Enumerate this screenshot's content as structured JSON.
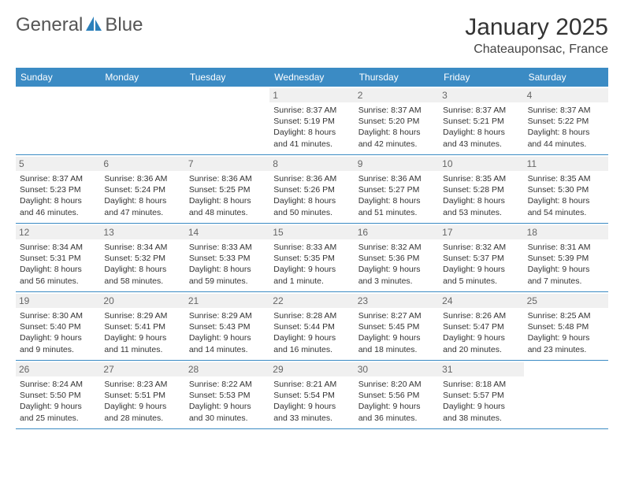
{
  "logo": {
    "text_part1": "General",
    "text_part2": "Blue"
  },
  "title": "January 2025",
  "location": "Chateauponsac, France",
  "colors": {
    "header_bg": "#3b8bc4",
    "header_text": "#ffffff",
    "daynum_bg": "#f0f0f0",
    "daynum_text": "#666666",
    "body_text": "#333333",
    "rule": "#3b8bc4",
    "logo_blue": "#2a7fba"
  },
  "weekdays": [
    "Sunday",
    "Monday",
    "Tuesday",
    "Wednesday",
    "Thursday",
    "Friday",
    "Saturday"
  ],
  "weeks": [
    [
      {
        "day": "",
        "sunrise": "",
        "sunset": "",
        "daylight1": "",
        "daylight2": ""
      },
      {
        "day": "",
        "sunrise": "",
        "sunset": "",
        "daylight1": "",
        "daylight2": ""
      },
      {
        "day": "",
        "sunrise": "",
        "sunset": "",
        "daylight1": "",
        "daylight2": ""
      },
      {
        "day": "1",
        "sunrise": "Sunrise: 8:37 AM",
        "sunset": "Sunset: 5:19 PM",
        "daylight1": "Daylight: 8 hours",
        "daylight2": "and 41 minutes."
      },
      {
        "day": "2",
        "sunrise": "Sunrise: 8:37 AM",
        "sunset": "Sunset: 5:20 PM",
        "daylight1": "Daylight: 8 hours",
        "daylight2": "and 42 minutes."
      },
      {
        "day": "3",
        "sunrise": "Sunrise: 8:37 AM",
        "sunset": "Sunset: 5:21 PM",
        "daylight1": "Daylight: 8 hours",
        "daylight2": "and 43 minutes."
      },
      {
        "day": "4",
        "sunrise": "Sunrise: 8:37 AM",
        "sunset": "Sunset: 5:22 PM",
        "daylight1": "Daylight: 8 hours",
        "daylight2": "and 44 minutes."
      }
    ],
    [
      {
        "day": "5",
        "sunrise": "Sunrise: 8:37 AM",
        "sunset": "Sunset: 5:23 PM",
        "daylight1": "Daylight: 8 hours",
        "daylight2": "and 46 minutes."
      },
      {
        "day": "6",
        "sunrise": "Sunrise: 8:36 AM",
        "sunset": "Sunset: 5:24 PM",
        "daylight1": "Daylight: 8 hours",
        "daylight2": "and 47 minutes."
      },
      {
        "day": "7",
        "sunrise": "Sunrise: 8:36 AM",
        "sunset": "Sunset: 5:25 PM",
        "daylight1": "Daylight: 8 hours",
        "daylight2": "and 48 minutes."
      },
      {
        "day": "8",
        "sunrise": "Sunrise: 8:36 AM",
        "sunset": "Sunset: 5:26 PM",
        "daylight1": "Daylight: 8 hours",
        "daylight2": "and 50 minutes."
      },
      {
        "day": "9",
        "sunrise": "Sunrise: 8:36 AM",
        "sunset": "Sunset: 5:27 PM",
        "daylight1": "Daylight: 8 hours",
        "daylight2": "and 51 minutes."
      },
      {
        "day": "10",
        "sunrise": "Sunrise: 8:35 AM",
        "sunset": "Sunset: 5:28 PM",
        "daylight1": "Daylight: 8 hours",
        "daylight2": "and 53 minutes."
      },
      {
        "day": "11",
        "sunrise": "Sunrise: 8:35 AM",
        "sunset": "Sunset: 5:30 PM",
        "daylight1": "Daylight: 8 hours",
        "daylight2": "and 54 minutes."
      }
    ],
    [
      {
        "day": "12",
        "sunrise": "Sunrise: 8:34 AM",
        "sunset": "Sunset: 5:31 PM",
        "daylight1": "Daylight: 8 hours",
        "daylight2": "and 56 minutes."
      },
      {
        "day": "13",
        "sunrise": "Sunrise: 8:34 AM",
        "sunset": "Sunset: 5:32 PM",
        "daylight1": "Daylight: 8 hours",
        "daylight2": "and 58 minutes."
      },
      {
        "day": "14",
        "sunrise": "Sunrise: 8:33 AM",
        "sunset": "Sunset: 5:33 PM",
        "daylight1": "Daylight: 8 hours",
        "daylight2": "and 59 minutes."
      },
      {
        "day": "15",
        "sunrise": "Sunrise: 8:33 AM",
        "sunset": "Sunset: 5:35 PM",
        "daylight1": "Daylight: 9 hours",
        "daylight2": "and 1 minute."
      },
      {
        "day": "16",
        "sunrise": "Sunrise: 8:32 AM",
        "sunset": "Sunset: 5:36 PM",
        "daylight1": "Daylight: 9 hours",
        "daylight2": "and 3 minutes."
      },
      {
        "day": "17",
        "sunrise": "Sunrise: 8:32 AM",
        "sunset": "Sunset: 5:37 PM",
        "daylight1": "Daylight: 9 hours",
        "daylight2": "and 5 minutes."
      },
      {
        "day": "18",
        "sunrise": "Sunrise: 8:31 AM",
        "sunset": "Sunset: 5:39 PM",
        "daylight1": "Daylight: 9 hours",
        "daylight2": "and 7 minutes."
      }
    ],
    [
      {
        "day": "19",
        "sunrise": "Sunrise: 8:30 AM",
        "sunset": "Sunset: 5:40 PM",
        "daylight1": "Daylight: 9 hours",
        "daylight2": "and 9 minutes."
      },
      {
        "day": "20",
        "sunrise": "Sunrise: 8:29 AM",
        "sunset": "Sunset: 5:41 PM",
        "daylight1": "Daylight: 9 hours",
        "daylight2": "and 11 minutes."
      },
      {
        "day": "21",
        "sunrise": "Sunrise: 8:29 AM",
        "sunset": "Sunset: 5:43 PM",
        "daylight1": "Daylight: 9 hours",
        "daylight2": "and 14 minutes."
      },
      {
        "day": "22",
        "sunrise": "Sunrise: 8:28 AM",
        "sunset": "Sunset: 5:44 PM",
        "daylight1": "Daylight: 9 hours",
        "daylight2": "and 16 minutes."
      },
      {
        "day": "23",
        "sunrise": "Sunrise: 8:27 AM",
        "sunset": "Sunset: 5:45 PM",
        "daylight1": "Daylight: 9 hours",
        "daylight2": "and 18 minutes."
      },
      {
        "day": "24",
        "sunrise": "Sunrise: 8:26 AM",
        "sunset": "Sunset: 5:47 PM",
        "daylight1": "Daylight: 9 hours",
        "daylight2": "and 20 minutes."
      },
      {
        "day": "25",
        "sunrise": "Sunrise: 8:25 AM",
        "sunset": "Sunset: 5:48 PM",
        "daylight1": "Daylight: 9 hours",
        "daylight2": "and 23 minutes."
      }
    ],
    [
      {
        "day": "26",
        "sunrise": "Sunrise: 8:24 AM",
        "sunset": "Sunset: 5:50 PM",
        "daylight1": "Daylight: 9 hours",
        "daylight2": "and 25 minutes."
      },
      {
        "day": "27",
        "sunrise": "Sunrise: 8:23 AM",
        "sunset": "Sunset: 5:51 PM",
        "daylight1": "Daylight: 9 hours",
        "daylight2": "and 28 minutes."
      },
      {
        "day": "28",
        "sunrise": "Sunrise: 8:22 AM",
        "sunset": "Sunset: 5:53 PM",
        "daylight1": "Daylight: 9 hours",
        "daylight2": "and 30 minutes."
      },
      {
        "day": "29",
        "sunrise": "Sunrise: 8:21 AM",
        "sunset": "Sunset: 5:54 PM",
        "daylight1": "Daylight: 9 hours",
        "daylight2": "and 33 minutes."
      },
      {
        "day": "30",
        "sunrise": "Sunrise: 8:20 AM",
        "sunset": "Sunset: 5:56 PM",
        "daylight1": "Daylight: 9 hours",
        "daylight2": "and 36 minutes."
      },
      {
        "day": "31",
        "sunrise": "Sunrise: 8:18 AM",
        "sunset": "Sunset: 5:57 PM",
        "daylight1": "Daylight: 9 hours",
        "daylight2": "and 38 minutes."
      },
      {
        "day": "",
        "sunrise": "",
        "sunset": "",
        "daylight1": "",
        "daylight2": ""
      }
    ]
  ]
}
